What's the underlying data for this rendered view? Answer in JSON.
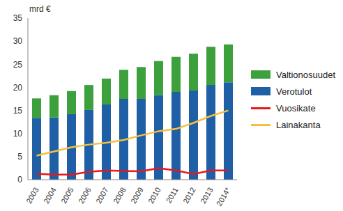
{
  "chart_data": {
    "type": "bar",
    "y_label": "mrd €",
    "categories": [
      "2003",
      "2004",
      "2005",
      "2006",
      "2007",
      "2008",
      "2009",
      "2010",
      "2011",
      "2012",
      "2013",
      "2014*"
    ],
    "series": [
      {
        "name": "Verotulot",
        "type": "bar",
        "color": "#1f5fa6",
        "values": [
          13.4,
          13.5,
          14.2,
          15.1,
          16.3,
          17.5,
          17.5,
          18.3,
          19.0,
          19.3,
          20.5,
          21.1
        ]
      },
      {
        "name": "Valtionosuudet",
        "type": "bar",
        "color": "#3ca03c",
        "values": [
          4.2,
          4.8,
          5.0,
          5.4,
          5.6,
          6.3,
          6.9,
          7.4,
          7.6,
          8.0,
          8.3,
          8.2
        ]
      },
      {
        "name": "Vuosikate",
        "type": "line",
        "color": "#e8171b",
        "values": [
          1.3,
          1.1,
          1.1,
          1.7,
          2.0,
          1.9,
          1.8,
          2.5,
          2.0,
          1.2,
          2.0,
          2.0
        ]
      },
      {
        "name": "Lainakanta",
        "type": "line",
        "color": "#f5c040",
        "values": [
          5.2,
          6.1,
          7.0,
          7.6,
          8.0,
          8.6,
          9.6,
          10.5,
          11.0,
          12.3,
          13.8,
          15.0
        ]
      }
    ],
    "ylim": [
      0,
      35
    ],
    "yticks": [
      0,
      5,
      10,
      15,
      20,
      25,
      30,
      35
    ],
    "stacked": true,
    "legend": "right",
    "grid": false
  }
}
